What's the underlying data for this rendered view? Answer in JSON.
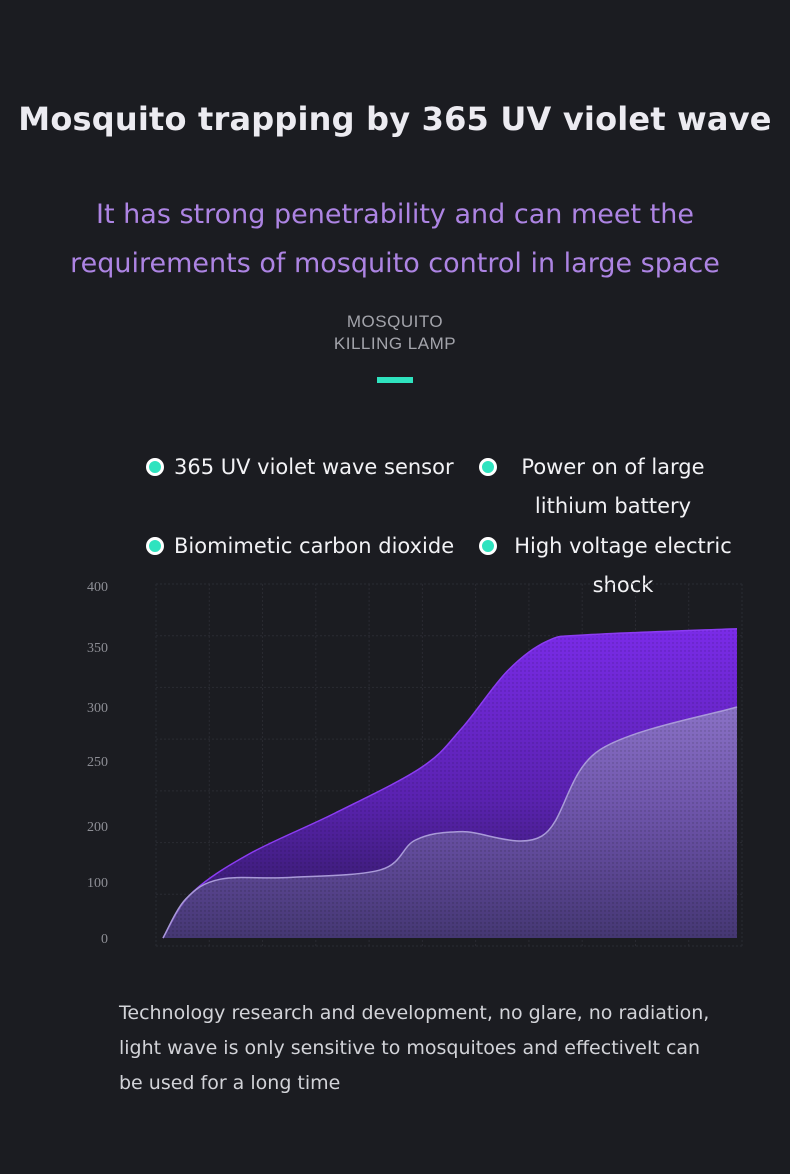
{
  "header": {
    "title": "Mosquito trapping by 365 UV violet wave",
    "subtitle_line1": "It has strong penetrability and can meet the",
    "subtitle_line2": "requirements of mosquito control in large space",
    "product_line1": "MOSQUITO",
    "product_line2": "KILLING LAMP"
  },
  "features": [
    "365 UV violet wave sensor",
    "Power on of large lithium battery",
    "Biomimetic carbon dioxide",
    "High voltage electric shock"
  ],
  "colors": {
    "accent": "#2fe3bf",
    "subtitle": "#ad84e3",
    "purple_series": "#7a2be8",
    "lavender_series": "#8d7ac4"
  },
  "chart_data": {
    "type": "area",
    "y_ticks": [
      "0",
      "100",
      "200",
      "250",
      "300",
      "350",
      "400"
    ],
    "grid": true,
    "series": [
      {
        "color": "#7a2be8",
        "points": [
          [
            0,
            0
          ],
          [
            5,
            80
          ],
          [
            15,
            150
          ],
          [
            30,
            210
          ],
          [
            45,
            245
          ],
          [
            52,
            280
          ],
          [
            60,
            330
          ],
          [
            67,
            355
          ],
          [
            74,
            360
          ],
          [
            100,
            365
          ]
        ]
      },
      {
        "color": "#8d7ac4",
        "points": [
          [
            0,
            0
          ],
          [
            4,
            70
          ],
          [
            10,
            105
          ],
          [
            22,
            108
          ],
          [
            38,
            122
          ],
          [
            44,
            175
          ],
          [
            52,
            190
          ],
          [
            66,
            182
          ],
          [
            76,
            260
          ],
          [
            100,
            300
          ]
        ]
      }
    ]
  },
  "description": "Technology research and development, no glare, no radiation, light wave is only sensitive to mosquitoes and effectiveIt can be used for a long time"
}
